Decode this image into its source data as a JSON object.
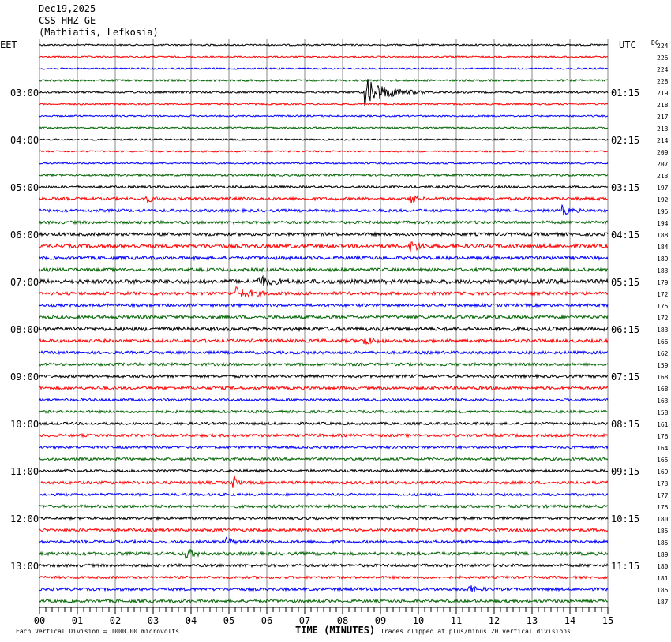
{
  "header": {
    "date": "Dec19,2025",
    "station": "CSS HHZ GE --",
    "location": "(Mathiatis, Lefkosia)"
  },
  "left_timezone": "EET",
  "right_timezone": "UTC",
  "dc_label": "DC",
  "footer": {
    "scale_note": "Each Vertical Division = 1000.00 microvolts",
    "xlabel": "TIME (MINUTES)",
    "clip_note": "Traces clipped at plus/minus 20 vertical divisions"
  },
  "colors": {
    "trace_cycle": [
      "#000000",
      "#ff0000",
      "#0000ff",
      "#006400"
    ],
    "grid": "#888888"
  },
  "chart_data": {
    "type": "line",
    "title": "CSS HHZ GE -- Dec19,2025",
    "xlabel": "TIME (MINUTES)",
    "xlim": [
      0,
      15
    ],
    "x_ticks": [
      "00",
      "01",
      "02",
      "03",
      "04",
      "05",
      "06",
      "07",
      "08",
      "09",
      "10",
      "11",
      "12",
      "13",
      "14",
      "15"
    ],
    "minutes_per_trace": 15,
    "trace_count": 48,
    "left_hour_labels": [
      {
        "row": 4,
        "label": "03:00"
      },
      {
        "row": 8,
        "label": "04:00"
      },
      {
        "row": 12,
        "label": "05:00"
      },
      {
        "row": 16,
        "label": "06:00"
      },
      {
        "row": 20,
        "label": "07:00"
      },
      {
        "row": 24,
        "label": "08:00"
      },
      {
        "row": 28,
        "label": "09:00"
      },
      {
        "row": 32,
        "label": "10:00"
      },
      {
        "row": 36,
        "label": "11:00"
      },
      {
        "row": 40,
        "label": "12:00"
      },
      {
        "row": 44,
        "label": "13:00"
      }
    ],
    "right_hour_labels": [
      {
        "row": 4,
        "label": "01:15"
      },
      {
        "row": 8,
        "label": "02:15"
      },
      {
        "row": 12,
        "label": "03:15"
      },
      {
        "row": 16,
        "label": "04:15"
      },
      {
        "row": 20,
        "label": "05:15"
      },
      {
        "row": 24,
        "label": "06:15"
      },
      {
        "row": 28,
        "label": "07:15"
      },
      {
        "row": 32,
        "label": "08:15"
      },
      {
        "row": 36,
        "label": "09:15"
      },
      {
        "row": 40,
        "label": "10:15"
      },
      {
        "row": 44,
        "label": "11:15"
      }
    ],
    "dc_offsets": [
      224,
      226,
      224,
      228,
      219,
      218,
      217,
      213,
      214,
      209,
      207,
      213,
      197,
      192,
      195,
      194,
      188,
      184,
      189,
      183,
      179,
      172,
      175,
      172,
      183,
      166,
      162,
      159,
      168,
      168,
      163,
      158,
      161,
      176,
      164,
      165,
      169,
      173,
      177,
      175,
      180,
      185,
      185,
      189,
      180,
      181,
      185,
      187
    ],
    "noise_levels": [
      1,
      1,
      1,
      1.2,
      1.2,
      1,
      1,
      1,
      1,
      1,
      1,
      1.3,
      1.5,
      1.8,
      1.8,
      1.8,
      2,
      2.4,
      2.2,
      2,
      2.6,
      2,
      1.8,
      2,
      2.4,
      2,
      1.8,
      1.8,
      1.8,
      1.8,
      1.6,
      1.6,
      1.6,
      1.8,
      1.6,
      1.6,
      1.6,
      1.8,
      1.6,
      1.8,
      1.6,
      1.8,
      1.8,
      2,
      1.8,
      1.6,
      1.8,
      1.8
    ],
    "events": [
      {
        "row": 4,
        "minute": 8.6,
        "amplitude": 18,
        "duration": 1.6
      },
      {
        "row": 13,
        "minute": 2.8,
        "amplitude": 6,
        "duration": 0.4
      },
      {
        "row": 13,
        "minute": 9.8,
        "amplitude": 6,
        "duration": 0.4
      },
      {
        "row": 14,
        "minute": 13.8,
        "amplitude": 6,
        "duration": 0.5
      },
      {
        "row": 17,
        "minute": 9.8,
        "amplitude": 6,
        "duration": 0.6
      },
      {
        "row": 20,
        "minute": 5.8,
        "amplitude": 6,
        "duration": 0.8
      },
      {
        "row": 21,
        "minute": 5.2,
        "amplitude": 7,
        "duration": 1.0
      },
      {
        "row": 25,
        "minute": 8.6,
        "amplitude": 5,
        "duration": 0.6
      },
      {
        "row": 37,
        "minute": 5.15,
        "amplitude": 8,
        "duration": 0.2
      },
      {
        "row": 42,
        "minute": 4.95,
        "amplitude": 7,
        "duration": 0.3
      },
      {
        "row": 43,
        "minute": 3.9,
        "amplitude": 6,
        "duration": 0.5
      },
      {
        "row": 46,
        "minute": 11.3,
        "amplitude": 5,
        "duration": 0.6
      }
    ]
  }
}
